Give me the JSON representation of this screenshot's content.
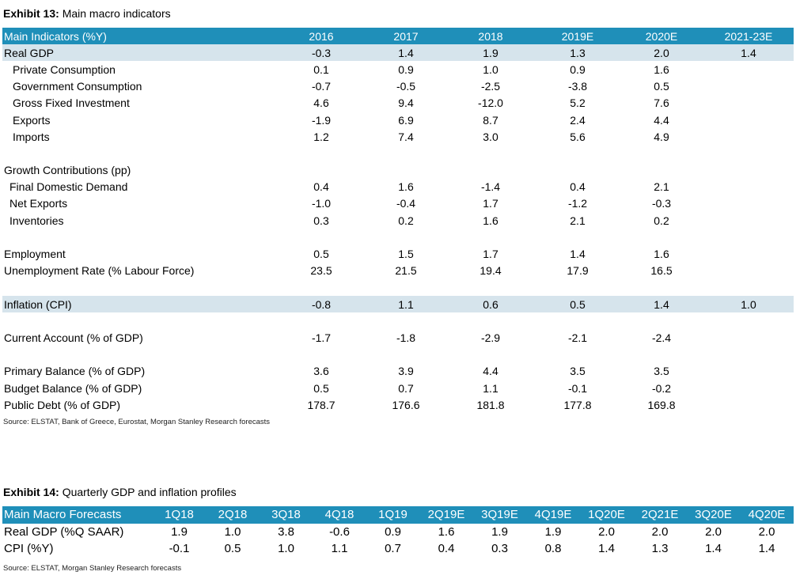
{
  "exhibit13": {
    "label": "Exhibit 13:",
    "title": "Main macro indicators",
    "header": [
      "Main Indicators (%Y)",
      "2016",
      "2017",
      "2018",
      "2019E",
      "2020E",
      "2021-23E"
    ],
    "rows": [
      {
        "label": "Real GDP",
        "values": [
          "-0.3",
          "1.4",
          "1.9",
          "1.3",
          "2.0",
          "1.4"
        ]
      },
      {
        "label": "Private Consumption",
        "values": [
          "0.1",
          "0.9",
          "1.0",
          "0.9",
          "1.6",
          ""
        ]
      },
      {
        "label": "Government Consumption",
        "values": [
          "-0.7",
          "-0.5",
          "-2.5",
          "-3.8",
          "0.5",
          ""
        ]
      },
      {
        "label": "Gross Fixed Investment",
        "values": [
          "4.6",
          "9.4",
          "-12.0",
          "5.2",
          "7.6",
          ""
        ]
      },
      {
        "label": "Exports",
        "values": [
          "-1.9",
          "6.9",
          "8.7",
          "2.4",
          "4.4",
          ""
        ]
      },
      {
        "label": "Imports",
        "values": [
          "1.2",
          "7.4",
          "3.0",
          "5.6",
          "4.9",
          ""
        ]
      },
      {
        "label": "Growth Contributions (pp)"
      },
      {
        "label": "Final Domestic Demand",
        "values": [
          "0.4",
          "1.6",
          "-1.4",
          "0.4",
          "2.1",
          ""
        ]
      },
      {
        "label": "Net Exports",
        "values": [
          "-1.0",
          "-0.4",
          "1.7",
          "-1.2",
          "-0.3",
          ""
        ]
      },
      {
        "label": "Inventories",
        "values": [
          "0.3",
          "0.2",
          "1.6",
          "2.1",
          "0.2",
          ""
        ]
      },
      {
        "label": "Employment",
        "values": [
          "0.5",
          "1.5",
          "1.7",
          "1.4",
          "1.6",
          ""
        ]
      },
      {
        "label": "Unemployment Rate (% Labour Force)",
        "values": [
          "23.5",
          "21.5",
          "19.4",
          "17.9",
          "16.5",
          ""
        ]
      },
      {
        "label": "Inflation (CPI)",
        "values": [
          "-0.8",
          "1.1",
          "0.6",
          "0.5",
          "1.4",
          "1.0"
        ]
      },
      {
        "label": "Current Account (% of GDP)",
        "values": [
          "-1.7",
          "-1.8",
          "-2.9",
          "-2.1",
          "-2.4",
          ""
        ]
      },
      {
        "label": "Primary Balance (% of GDP)",
        "values": [
          "3.6",
          "3.9",
          "4.4",
          "3.5",
          "3.5",
          ""
        ]
      },
      {
        "label": "Budget Balance (% of GDP)",
        "values": [
          "0.5",
          "0.7",
          "1.1",
          "-0.1",
          "-0.2",
          ""
        ]
      },
      {
        "label": "Public Debt (% of GDP)",
        "values": [
          "178.7",
          "176.6",
          "181.8",
          "177.8",
          "169.8",
          ""
        ]
      }
    ],
    "source": "Source: ELSTAT, Bank of Greece, Eurostat, Morgan Stanley Research forecasts"
  },
  "exhibit14": {
    "label": "Exhibit 14:",
    "title": "Quarterly GDP and inflation profiles",
    "header": [
      "Main Macro Forecasts",
      "1Q18",
      "2Q18",
      "3Q18",
      "4Q18",
      "1Q19",
      "2Q19E",
      "3Q19E",
      "4Q19E",
      "1Q20E",
      "2Q21E",
      "3Q20E",
      "4Q20E"
    ],
    "rows": [
      {
        "label": "Real GDP (%Q SAAR)",
        "values": [
          "1.9",
          "1.0",
          "3.8",
          "-0.6",
          "0.9",
          "1.6",
          "1.9",
          "1.9",
          "2.0",
          "2.0",
          "2.0",
          "2.0"
        ]
      },
      {
        "label": "CPI (%Y)",
        "values": [
          "-0.1",
          "0.5",
          "1.0",
          "1.1",
          "0.7",
          "0.4",
          "0.3",
          "0.8",
          "1.4",
          "1.3",
          "1.4",
          "1.4"
        ]
      }
    ],
    "source": "Source: ELSTAT, Morgan Stanley Research forecasts"
  }
}
